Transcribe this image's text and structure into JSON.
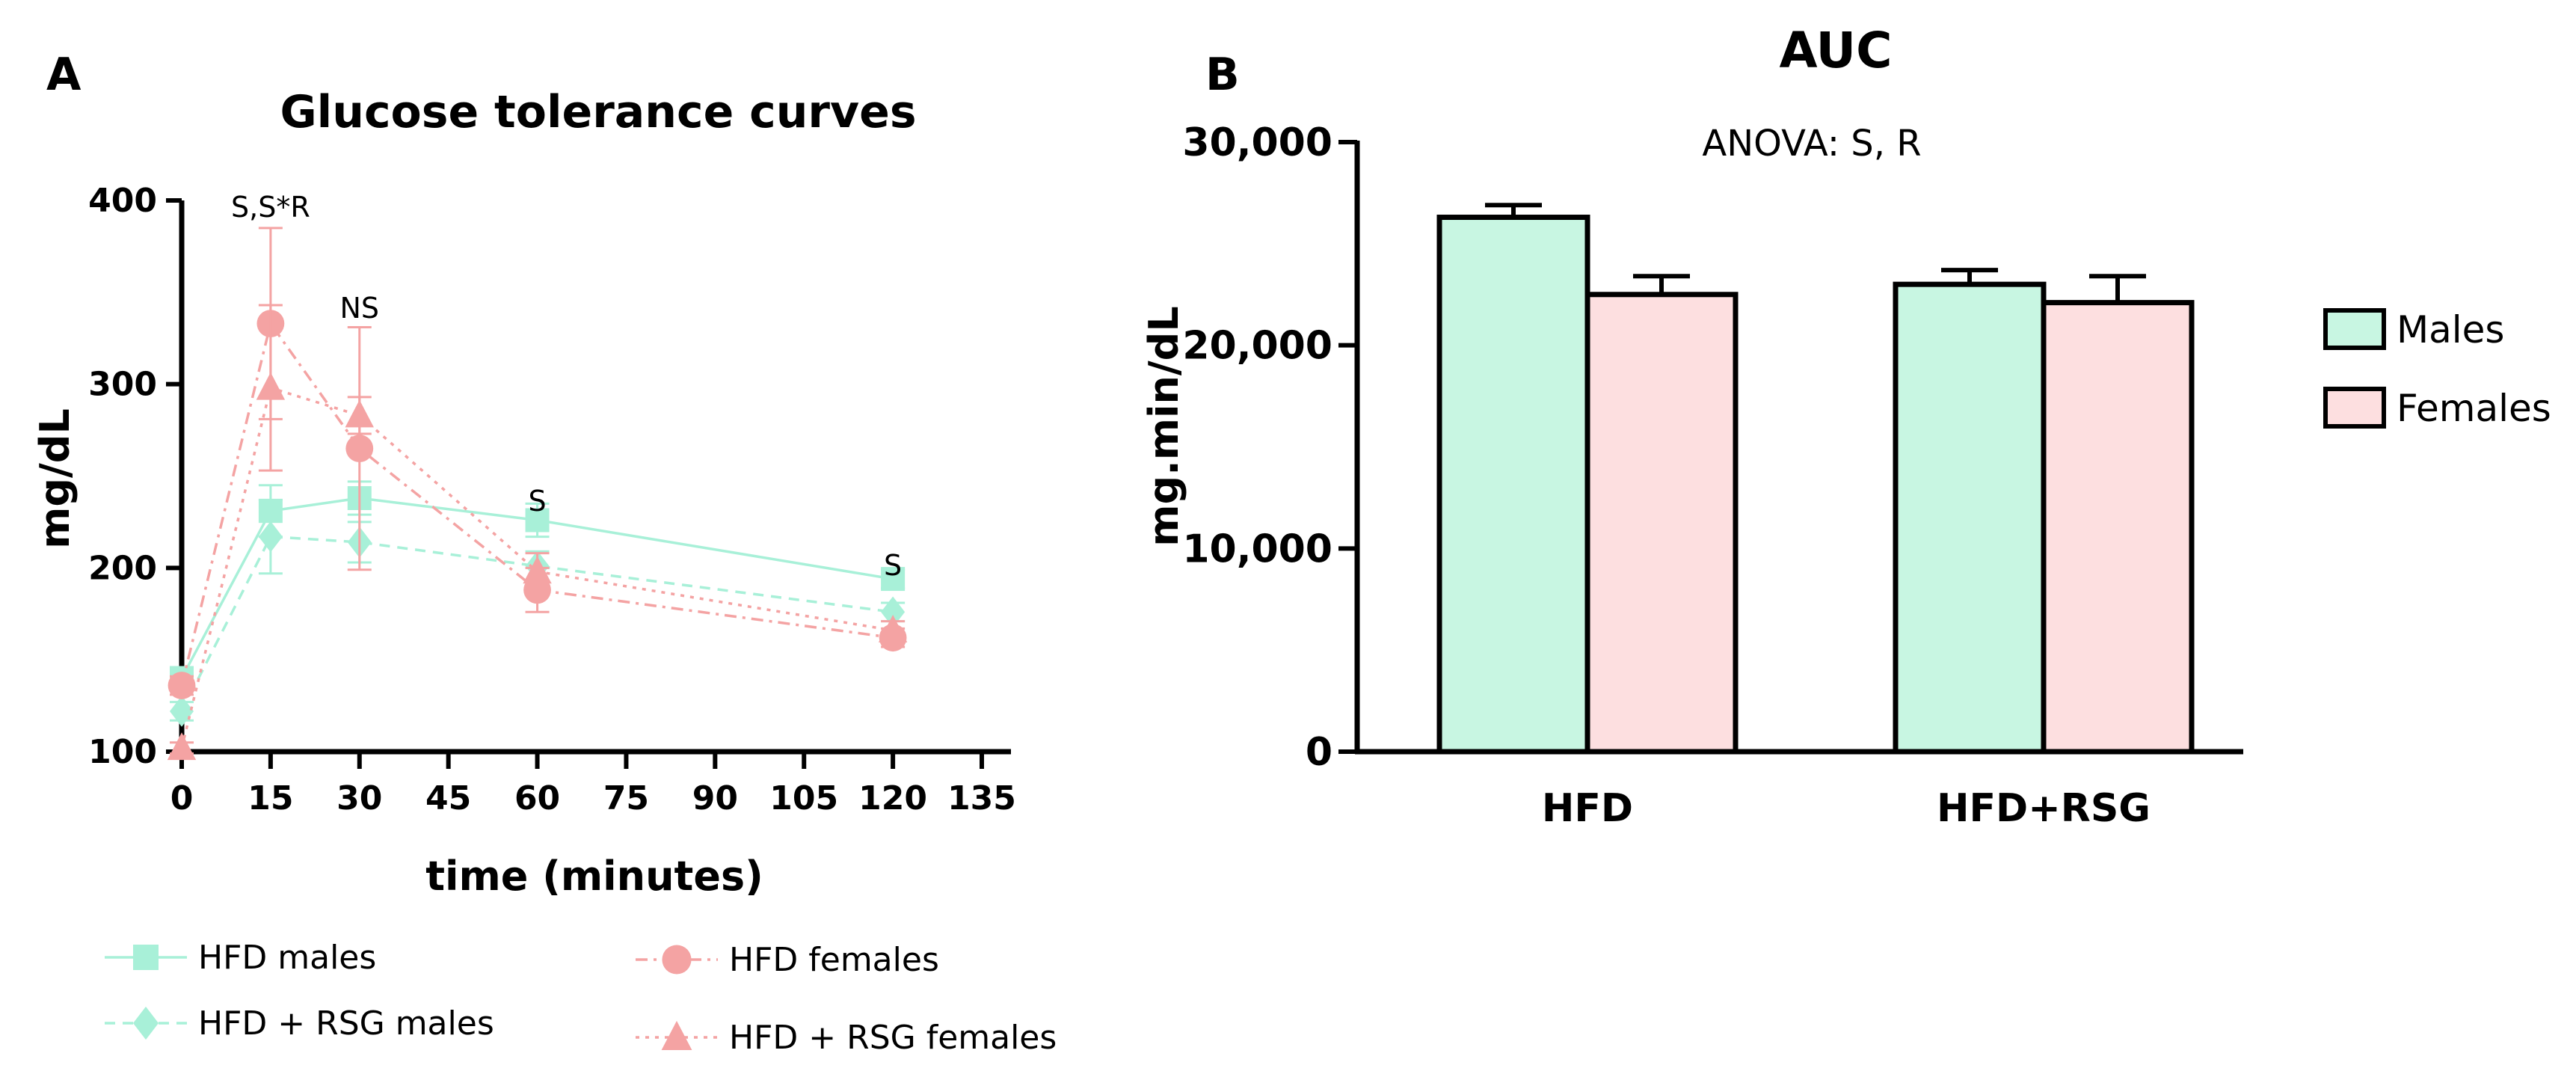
{
  "panels": {
    "a": {
      "letter": "A"
    },
    "b": {
      "letter": "B"
    }
  },
  "chart_data": [
    {
      "type": "line",
      "title": "Glucose tolerance curves",
      "xlabel": "time (minutes)",
      "ylabel": "mg/dL",
      "xlim": [
        0,
        135
      ],
      "ylim": [
        100,
        400
      ],
      "xticks": [
        0,
        15,
        30,
        45,
        60,
        75,
        90,
        105,
        120,
        135
      ],
      "yticks": [
        100,
        200,
        300,
        400
      ],
      "x": [
        0,
        15,
        30,
        60,
        120
      ],
      "series": [
        {
          "name": "HFD males",
          "marker": "square",
          "dash": "solid",
          "color": "#a8f0d8",
          "values": [
            140,
            231,
            238,
            226,
            194
          ],
          "errors": [
            6,
            14,
            9,
            9,
            5
          ]
        },
        {
          "name": "HFD + RSG males",
          "marker": "diamond",
          "dash": "dashed",
          "color": "#a8f0d8",
          "values": [
            122,
            217,
            214,
            201,
            176
          ],
          "errors": [
            5,
            20,
            11,
            8,
            5
          ]
        },
        {
          "name": "HFD females",
          "marker": "circle",
          "dash": "dashdot",
          "color": "#f4a3a3",
          "values": [
            136,
            333,
            265,
            188,
            162
          ],
          "errors": [
            5,
            52,
            66,
            12,
            5
          ]
        },
        {
          "name": "HFD + RSG females",
          "marker": "triangle",
          "dash": "dotted",
          "color": "#f4a3a3",
          "values": [
            102,
            298,
            283,
            198,
            166
          ],
          "errors": [
            3,
            45,
            10,
            10,
            5
          ]
        }
      ],
      "annotations": [
        {
          "x": 15,
          "y": 400,
          "text": "S,S*R"
        },
        {
          "x": 30,
          "y": 345,
          "text": "NS"
        },
        {
          "x": 60,
          "y": 240,
          "text": "S"
        },
        {
          "x": 120,
          "y": 205,
          "text": "S"
        }
      ]
    },
    {
      "type": "bar",
      "title": "AUC",
      "subtitle": "ANOVA: S, R",
      "xlabel": "",
      "ylabel": "mg.min/dL",
      "ylim": [
        0,
        30000
      ],
      "yticks": [
        0,
        10000,
        20000,
        30000
      ],
      "ytick_labels": [
        "0",
        "10,000",
        "20,000",
        "30,000"
      ],
      "categories": [
        "HFD",
        "HFD+RSG"
      ],
      "series": [
        {
          "name": "Males",
          "color": "#c8f6e2",
          "values": [
            26300,
            23000
          ],
          "errors": [
            600,
            700
          ]
        },
        {
          "name": "Females",
          "color": "#fddfe0",
          "values": [
            22500,
            22100
          ],
          "errors": [
            900,
            1300
          ]
        }
      ]
    }
  ]
}
